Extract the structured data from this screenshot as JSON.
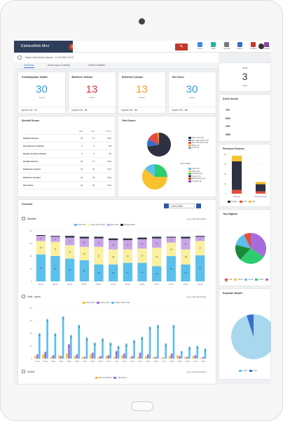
{
  "app": {
    "brand": "ElektraWeb Mini",
    "brand_badge": "≡",
    "report_time": "Rapor Hazırlanma Zamanı : 11.03.2020 14:23"
  },
  "topbar": {
    "icons": [
      {
        "label": "Durum",
        "color": "#3b8fd9"
      },
      {
        "label": "Hızlıl",
        "color": "#2ab0a0"
      },
      {
        "label": "Yorumlar",
        "color": "#777777"
      },
      {
        "label": "Ödeme",
        "color": "#3b6cc7"
      },
      {
        "label": "Ön Büro",
        "color": "#c0392b"
      },
      {
        "label": "Raporlar",
        "color": "#8e44ad"
      }
    ],
    "avatar_text": "EN"
  },
  "tabs": [
    {
      "label": "Ana Ekran"
    },
    {
      "label": "Rezervasyon Grafikleri"
    },
    {
      "label": "Yönetim Grafikleri"
    }
  ],
  "kpis": [
    {
      "title": "Konaklayanlar Odalar",
      "value": "30",
      "unit": "Odalar",
      "footer_label": "Toplam Pax :",
      "footer_value": "71",
      "color": "#2b9fd9"
    },
    {
      "title": "Beklenen Gelişler",
      "value": "13",
      "unit": "Odalar",
      "footer_label": "Toplam Pax :",
      "footer_value": "10",
      "color": "#d9363e"
    },
    {
      "title": "Beklenen Çıkışlar",
      "value": "13",
      "unit": "Odalar",
      "footer_label": "Toplam Pax :",
      "footer_value": "32",
      "color": "#f0a020"
    },
    {
      "title": "Gün Sonu",
      "value": "30",
      "unit": "Odalar",
      "footer_label": "Toplam Pax :",
      "footer_value": "49",
      "color": "#2b9fd9"
    }
  ],
  "status_table": {
    "title": "Şimdiki Durum",
    "headers": [
      "",
      "Oda",
      "Kişi",
      "Yüzde"
    ],
    "rows": [
      [
        "Sabahki Durum",
        "30",
        "71",
        "%30"
      ],
      [
        "Gerçekleşen Gelişler",
        "0",
        "0",
        "%0"
      ],
      [
        "Bugün Ayrılmış Olanlar",
        "0",
        "0",
        "%0"
      ],
      [
        "Şimdiki Durum",
        "30",
        "71",
        "%30"
      ],
      [
        "Beklenen Gelişler",
        "13",
        "10",
        "%13"
      ],
      [
        "Beklenen Çıkışlar",
        "13",
        "32",
        "%13"
      ],
      [
        "Gün Sonu",
        "30",
        "49",
        "%30"
      ]
    ]
  },
  "oda_durum": {
    "title": "Oda Durum",
    "legend1": [
      {
        "label": "Dolu Oda (30)",
        "color": "#2d3142"
      },
      {
        "label": "Boş Oda (Temiz) (5)",
        "color": "#3b6cc7"
      },
      {
        "label": "Boş Oda (Kirli) (12)",
        "color": "#e74c3c"
      },
      {
        "label": "Bloke (2)",
        "color": "#f39c12"
      },
      {
        "label": "Arıza (1)",
        "color": "#95a5a6"
      }
    ],
    "legend2_title": "Temiz Kirlilik",
    "legend2": [
      {
        "label": "Clean (6)",
        "color": "#5bc0eb"
      },
      {
        "label": "Dirty (12)",
        "color": "#f7c22e"
      },
      {
        "label": "Checked (0)",
        "color": "#2ecc71"
      },
      {
        "label": "Inspect (0)",
        "color": "#111111"
      },
      {
        "label": "Maintenance (1)",
        "color": "#c0392b"
      },
      {
        "label": "Touched (1)",
        "color": "#8e44ad"
      }
    ]
  },
  "right": {
    "date_day": "Ocak",
    "date_num": "3",
    "date_year": "2020",
    "rates_title": "Döviz Kurları",
    "rates": [
      "TRY",
      "EUR",
      "USD",
      "GBP"
    ],
    "pension_title": "Pansiyon Durumu",
    "pension_ticks": [
      "60",
      "45",
      "30",
      "15",
      "0"
    ],
    "pension_legend": [
      {
        "label": "Toplam",
        "color": "#2d3142"
      },
      {
        "label": "OAT",
        "color": "#e74c3c"
      },
      {
        "label": "AB",
        "color": "#f7c22e"
      }
    ],
    "pension_xlabels": [
      "Kahvaltı",
      "Yarım Pansiyon"
    ],
    "yas_title": "Yaş Dağılımı",
    "yas_legend": [
      {
        "label": "0-18",
        "color": "#e74c3c"
      },
      {
        "label": "19-30",
        "color": "#f7c22e"
      },
      {
        "label": "31-45",
        "color": "#5bc0eb"
      },
      {
        "label": "46-60",
        "color": "#2ecc71"
      },
      {
        "label": "60+",
        "color": "#a66cd9"
      }
    ],
    "rep_title": "Repeater Misafir",
    "rep_legend": [
      {
        "label": "1 (28)",
        "color": "#5bc0eb"
      },
      {
        "label": "2 (3)",
        "color": "#3b6cc7"
      }
    ]
  },
  "forecast": {
    "title": "Forecast",
    "date_value": "03.01.2020",
    "toggle_label": "Liste Görünümü",
    "chart1_title": "Müsaitlik",
    "chart1_legend": [
      {
        "label": "Dolu Oda",
        "color": "#5bc0eb"
      },
      {
        "label": "Boş Oda (Temiz)",
        "color": "#f9f0a0"
      },
      {
        "label": "Boş Oda",
        "color": "#c9a5e8"
      },
      {
        "label": "Satışa Kapalı",
        "color": "#2d3142"
      }
    ],
    "chart2_title": "Geliş - Ayrılış",
    "chart2_legend": [
      {
        "label": "Geliş Oda",
        "color": "#f7c22e"
      },
      {
        "label": "Ayrılış Oda",
        "color": "#a66cd9"
      },
      {
        "label": "Toplam Dolu Oda",
        "color": "#5bc0eb"
      }
    ],
    "chart3_title": "Doluluk",
    "chart3_legend": [
      {
        "label": "Mevcut Doluluk",
        "color": "#f7c22e"
      },
      {
        "label": "Oda Sayısı",
        "color": "#a66cd9"
      }
    ]
  },
  "chart_data": [
    {
      "type": "bar",
      "title": "Müsaitlik",
      "categories": [
        "02.01",
        "03.01",
        "04.01",
        "05.01",
        "06.01",
        "07.01",
        "08.01",
        "09.01",
        "10.01",
        "11.01",
        "12.01",
        "13.01"
      ],
      "series": [
        {
          "name": "Dolu Oda",
          "values": [
            32,
            30,
            27,
            25,
            20,
            20,
            22,
            22,
            18,
            30,
            20,
            31
          ]
        },
        {
          "name": "Boş Oda (Temiz)",
          "values": [
            16,
            17,
            16,
            16,
            21,
            18,
            16,
            17,
            22,
            16,
            18,
            17
          ]
        },
        {
          "name": "Boş Oda",
          "values": [
            6,
            6,
            9,
            10,
            10,
            11,
            11,
            11,
            11,
            6,
            13,
            5
          ]
        },
        {
          "name": "Satışa Kapalı",
          "values": [
            1,
            1,
            2,
            2,
            2,
            2,
            2,
            2,
            2,
            1,
            2,
            1
          ]
        }
      ],
      "ylim": [
        0,
        60
      ]
    },
    {
      "type": "bar",
      "title": "Geliş - Ayrılış",
      "categories": [
        "01.01",
        "02.01",
        "03.01",
        "04.01",
        "05.01",
        "06.01",
        "07.01",
        "08.01",
        "09.01",
        "10.01",
        "11.01",
        "12.01",
        "13.01",
        "14.01",
        "15.01",
        "16.01",
        "17.01",
        "18.01",
        "19.01",
        "20.01",
        "21.01",
        "22.01"
      ],
      "series": [
        {
          "name": "Geliş Oda",
          "values": [
            3,
            5,
            2,
            4,
            6,
            3,
            2,
            5,
            2,
            3,
            2,
            4,
            1,
            2,
            3,
            2,
            1,
            3,
            4,
            2,
            3,
            1
          ]
        },
        {
          "name": "Ayrılış Oda",
          "values": [
            5,
            8,
            4,
            3,
            17,
            5,
            2,
            7,
            3,
            4,
            9,
            6,
            3,
            7,
            5,
            2,
            1,
            6,
            3,
            2,
            4,
            2
          ]
        },
        {
          "name": "Toplam Dolu Oda",
          "values": [
            30,
            47,
            30,
            50,
            28,
            40,
            25,
            19,
            24,
            19,
            15,
            18,
            22,
            26,
            38,
            40,
            18,
            40,
            9,
            14,
            15,
            12
          ]
        }
      ],
      "ylim": [
        0,
        60
      ]
    }
  ]
}
